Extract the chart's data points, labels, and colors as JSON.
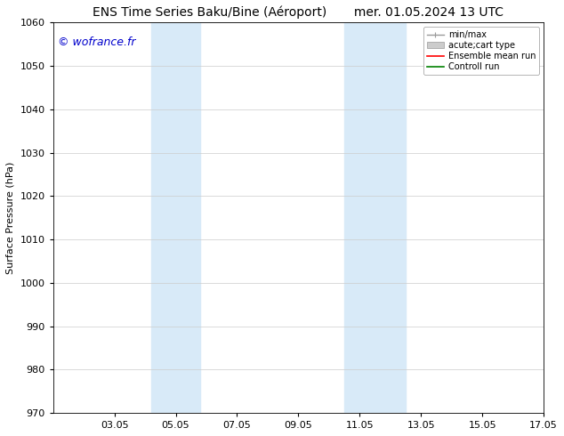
{
  "title": "ENS Time Series Baku/Bine (Aéroport)       mer. 01.05.2024 13 UTC",
  "ylabel": "Surface Pressure (hPa)",
  "ylim": [
    970,
    1060
  ],
  "yticks": [
    970,
    980,
    990,
    1000,
    1010,
    1020,
    1030,
    1040,
    1050,
    1060
  ],
  "xlim": [
    1,
    17
  ],
  "xtick_labels": [
    "03.05",
    "05.05",
    "07.05",
    "09.05",
    "11.05",
    "13.05",
    "15.05",
    "17.05"
  ],
  "xtick_positions": [
    3,
    5,
    7,
    9,
    11,
    13,
    15,
    17
  ],
  "shaded_bands": [
    {
      "x_start": 4.2,
      "x_end": 5.8
    },
    {
      "x_start": 10.5,
      "x_end": 12.5
    }
  ],
  "watermark": "© wofrance.fr",
  "watermark_color": "#0000cc",
  "watermark_fontsize": 9,
  "bg_color": "#ffffff",
  "plot_bg_color": "#ffffff",
  "shaded_color": "#d8eaf8",
  "grid_color": "#cccccc",
  "title_fontsize": 10,
  "tick_fontsize": 8,
  "legend_fontsize": 7,
  "ylabel_fontsize": 8
}
